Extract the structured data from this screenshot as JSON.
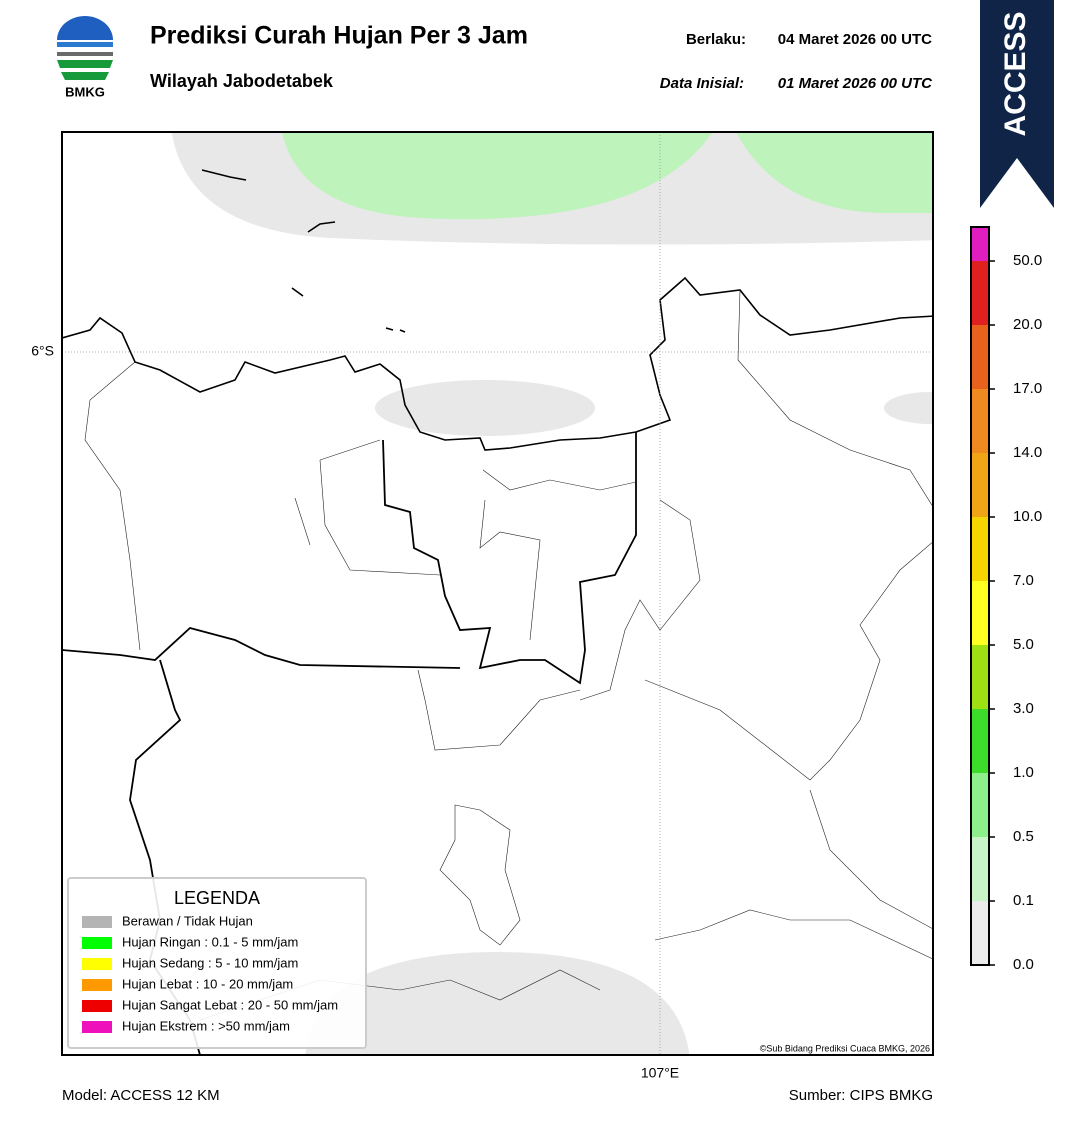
{
  "header": {
    "logo_text": "BMKG",
    "title": "Prediksi Curah Hujan Per 3 Jam",
    "subtitle": "Wilayah Jabodetabek",
    "valid_label": "Berlaku:",
    "valid_time": "04 Maret 2026 00 UTC",
    "init_label": "Data Inisial:",
    "init_time": "01 Maret 2026 00 UTC",
    "badge": "ACCESS"
  },
  "map": {
    "lat_label": "6°S",
    "lon_label": "107°E",
    "credit": "©Sub Bidang Prediksi Cuaca BMKG, 2026"
  },
  "legend": {
    "title": "LEGENDA",
    "items": [
      {
        "label": "Berawan / Tidak Hujan",
        "color": "#b4b4b4"
      },
      {
        "label": "Hujan Ringan : 0.1 - 5 mm/jam",
        "color": "#00ff00"
      },
      {
        "label": "Hujan Sedang : 5 - 10 mm/jam",
        "color": "#ffff00"
      },
      {
        "label": "Hujan Lebat : 10 - 20 mm/jam",
        "color": "#ff9900"
      },
      {
        "label": "Hujan Sangat Lebat : 20 - 50 mm/jam",
        "color": "#ee0000"
      },
      {
        "label": "Hujan Ekstrem : >50 mm/jam",
        "color": "#ee11bb"
      }
    ]
  },
  "colorbar": {
    "colors": [
      "#ececec",
      "#c8f5c8",
      "#8cef8c",
      "#3ddc2a",
      "#9ee011",
      "#ffff22",
      "#f6d400",
      "#f0a516",
      "#ef8a20",
      "#e8621e",
      "#e0201e",
      "#e01ec0"
    ],
    "ticks": [
      {
        "value": 0,
        "label": "0.0"
      },
      {
        "value": 0.1,
        "label": "0.1"
      },
      {
        "value": 0.5,
        "label": "0.5"
      },
      {
        "value": 1,
        "label": "1.0"
      },
      {
        "value": 3,
        "label": "3.0"
      },
      {
        "value": 5,
        "label": "5.0"
      },
      {
        "value": 7,
        "label": "7.0"
      },
      {
        "value": 10,
        "label": "10.0"
      },
      {
        "value": 14,
        "label": "14.0"
      },
      {
        "value": 17,
        "label": "17.0"
      },
      {
        "value": 20,
        "label": "20.0"
      },
      {
        "value": 50,
        "label": "50.0"
      }
    ]
  },
  "footer": {
    "model": "Model: ACCESS 12 KM",
    "source": "Sumber: CIPS BMKG"
  }
}
